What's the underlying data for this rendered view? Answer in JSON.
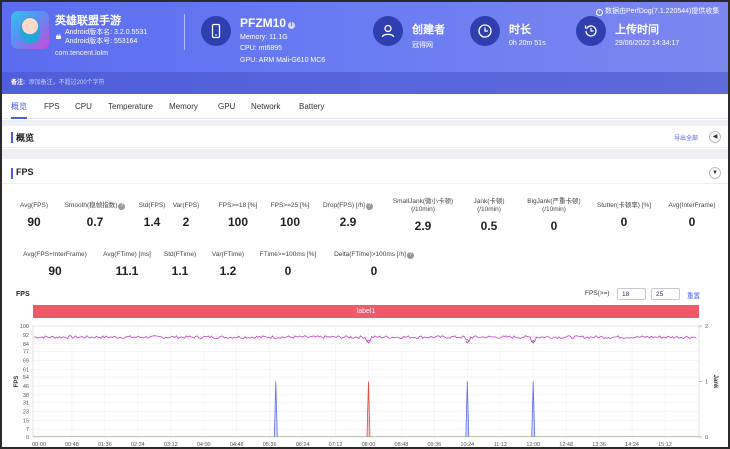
{
  "header": {
    "app_name": "英雄联盟手游",
    "android_version_name": "Android版本名: 3.2.0.5531",
    "android_version_code": "Android版本号: 553164",
    "package": "com.tencent.lolm",
    "device_name": "PFZM10",
    "memory": "Memory: 11.1G",
    "cpu": "CPU: mt6895",
    "gpu": "GPU: ARM Mali-G610 MC6",
    "creator_label": "创建者",
    "creator_value": "冠得网",
    "duration_label": "时长",
    "duration_value": "0h 20m 51s",
    "upload_label": "上传时间",
    "upload_value": "29/06/2022 14:34:17",
    "perfdog_note": "数据由PerfDog(7.1.220544)提供收集",
    "note_label": "备注:",
    "note_placeholder": "添加备注，不超过200个字符"
  },
  "tabs": [
    "概览",
    "FPS",
    "CPU",
    "Temperature",
    "Memory",
    "GPU",
    "Network",
    "Battery"
  ],
  "overview": {
    "title": "概览",
    "export_label": "导出全部",
    "collapse_icon": "◀"
  },
  "fps_section": {
    "title": "FPS",
    "toggle_icon": "▼",
    "stats_row1": [
      {
        "label": "Avg(FPS)",
        "label2": "",
        "help": false,
        "value": "90"
      },
      {
        "label": "Smooth(稳帧指数)",
        "label2": "",
        "help": true,
        "value": "0.7"
      },
      {
        "label": "Std(FPS)",
        "label2": "",
        "help": false,
        "value": "1.4"
      },
      {
        "label": "Var(FPS)",
        "label2": "",
        "help": false,
        "value": "2"
      },
      {
        "label": "FPS>=18 [%]",
        "label2": "",
        "help": false,
        "value": "100"
      },
      {
        "label": "FPS>=25 [%]",
        "label2": "",
        "help": false,
        "value": "100"
      },
      {
        "label": "Drop(FPS) [/h]",
        "label2": "",
        "help": true,
        "value": "2.9"
      },
      {
        "label": "SmallJank(微小卡顿)",
        "label2": "(/10min)",
        "help": false,
        "value": "2.9"
      },
      {
        "label": "Jank(卡顿)",
        "label2": "(/10min)",
        "help": false,
        "value": "0.5"
      },
      {
        "label": "BigJank(严重卡顿)",
        "label2": "(/10min)",
        "help": false,
        "value": "0"
      },
      {
        "label": "Stutter(卡顿率) [%]",
        "label2": "",
        "help": false,
        "value": "0"
      },
      {
        "label": "Avg(InterFrame)",
        "label2": "",
        "help": false,
        "value": "0"
      }
    ],
    "stats_row2": [
      {
        "label": "Avg(FPS+InterFrame)",
        "help": false,
        "value": "90"
      },
      {
        "label": "Avg(FTime) [ms]",
        "help": false,
        "value": "11.1"
      },
      {
        "label": "Std(FTime)",
        "help": false,
        "value": "1.1"
      },
      {
        "label": "Var(FTime)",
        "help": false,
        "value": "1.2"
      },
      {
        "label": "FTime>=100ms [%]",
        "help": false,
        "value": "0"
      },
      {
        "label": "Delta(FTime)>100ms [/h]",
        "help": true,
        "value": "0"
      }
    ],
    "chart_title": "FPS",
    "threshold_label": "FPS(>=)",
    "threshold_low": "18",
    "threshold_high": "25",
    "reset_label": "重置",
    "label_band": "label1"
  },
  "chart_data": {
    "type": "line",
    "ylabel": "FPS",
    "y2label": "Jank",
    "ylim": [
      0,
      100
    ],
    "y2lim": [
      0,
      2
    ],
    "yticks": [
      0,
      7,
      15,
      23,
      31,
      38,
      46,
      54,
      61,
      69,
      77,
      84,
      92,
      100
    ],
    "y2ticks": [
      0,
      1,
      2
    ],
    "xticks": [
      "00:00",
      "00:48",
      "01:36",
      "02:24",
      "03:12",
      "04:00",
      "04:48",
      "05:36",
      "06:24",
      "07:12",
      "08:00",
      "08:48",
      "09:36",
      "10:24",
      "11:12",
      "12:00",
      "12:48",
      "13:36",
      "14:24",
      "15:12"
    ],
    "series": [
      {
        "name": "FPS",
        "color": "#c040c8",
        "values_approx": 90
      },
      {
        "name": "SmallJank",
        "color": "#5b6ff0",
        "spikes_at": [
          "05:45",
          "10:24",
          "12:00"
        ],
        "spike_value": 1
      },
      {
        "name": "Jank",
        "color": "#e24a3a",
        "spikes_at": [
          "08:00"
        ],
        "spike_value": 1
      }
    ],
    "fps_dips_at": [
      "08:00",
      "10:24",
      "12:00"
    ],
    "grid": true
  }
}
